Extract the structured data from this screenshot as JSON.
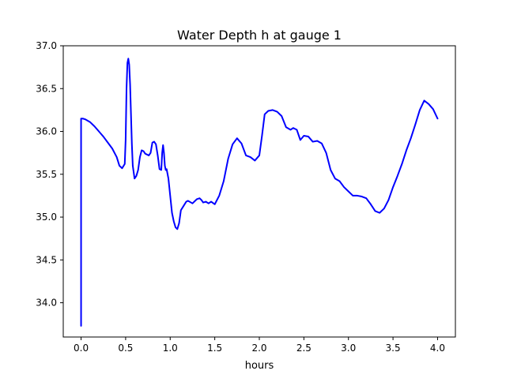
{
  "chart_data": {
    "type": "line",
    "title": "Water Depth h at gauge 1",
    "xlabel": "hours",
    "ylabel": "",
    "xlim": [
      -0.2,
      4.2
    ],
    "ylim": [
      33.6,
      37.0
    ],
    "x_ticks": [
      0.0,
      0.5,
      1.0,
      1.5,
      2.0,
      2.5,
      3.0,
      3.5,
      4.0
    ],
    "x_tick_labels": [
      "0.0",
      "0.5",
      "1.0",
      "1.5",
      "2.0",
      "2.5",
      "3.0",
      "3.5",
      "4.0"
    ],
    "y_ticks": [
      34.0,
      34.5,
      35.0,
      35.5,
      36.0,
      36.5,
      37.0
    ],
    "y_tick_labels": [
      "34.0",
      "34.5",
      "35.0",
      "35.5",
      "36.0",
      "36.5",
      "37.0"
    ],
    "grid": false,
    "legend": "none",
    "series": [
      {
        "color": "#0000ff",
        "x": [
          0.0,
          0.0,
          0.02,
          0.05,
          0.1,
          0.15,
          0.2,
          0.25,
          0.3,
          0.35,
          0.4,
          0.43,
          0.46,
          0.49,
          0.5,
          0.51,
          0.52,
          0.53,
          0.54,
          0.55,
          0.56,
          0.57,
          0.58,
          0.6,
          0.62,
          0.64,
          0.66,
          0.68,
          0.7,
          0.72,
          0.74,
          0.76,
          0.78,
          0.8,
          0.82,
          0.84,
          0.86,
          0.88,
          0.9,
          0.91,
          0.92,
          0.93,
          0.94,
          0.95,
          0.96,
          0.98,
          1.0,
          1.02,
          1.04,
          1.06,
          1.08,
          1.1,
          1.12,
          1.15,
          1.18,
          1.2,
          1.25,
          1.3,
          1.33,
          1.35,
          1.37,
          1.4,
          1.43,
          1.46,
          1.5,
          1.55,
          1.6,
          1.65,
          1.7,
          1.75,
          1.8,
          1.85,
          1.9,
          1.95,
          2.0,
          2.03,
          2.06,
          2.1,
          2.15,
          2.2,
          2.25,
          2.3,
          2.35,
          2.38,
          2.4,
          2.42,
          2.46,
          2.5,
          2.55,
          2.6,
          2.65,
          2.7,
          2.75,
          2.8,
          2.85,
          2.9,
          2.95,
          3.0,
          3.05,
          3.1,
          3.15,
          3.2,
          3.25,
          3.3,
          3.35,
          3.4,
          3.45,
          3.5,
          3.55,
          3.6,
          3.65,
          3.7,
          3.75,
          3.8,
          3.85,
          3.9,
          3.95,
          4.0
        ],
        "y": [
          33.73,
          36.15,
          36.15,
          36.14,
          36.11,
          36.06,
          36.0,
          35.94,
          35.87,
          35.8,
          35.7,
          35.6,
          35.57,
          35.62,
          35.9,
          36.5,
          36.8,
          36.85,
          36.78,
          36.55,
          36.2,
          35.85,
          35.6,
          35.45,
          35.48,
          35.55,
          35.7,
          35.78,
          35.77,
          35.74,
          35.73,
          35.72,
          35.75,
          35.87,
          35.88,
          35.85,
          35.72,
          35.56,
          35.55,
          35.75,
          35.84,
          35.75,
          35.6,
          35.55,
          35.56,
          35.45,
          35.25,
          35.05,
          34.95,
          34.88,
          34.86,
          34.93,
          35.08,
          35.13,
          35.18,
          35.19,
          35.16,
          35.21,
          35.22,
          35.2,
          35.17,
          35.18,
          35.16,
          35.18,
          35.15,
          35.25,
          35.42,
          35.68,
          35.85,
          35.92,
          35.86,
          35.72,
          35.7,
          35.66,
          35.72,
          35.95,
          36.2,
          36.24,
          36.25,
          36.23,
          36.18,
          36.05,
          36.02,
          36.04,
          36.03,
          36.02,
          35.9,
          35.95,
          35.94,
          35.88,
          35.89,
          35.86,
          35.75,
          35.55,
          35.45,
          35.42,
          35.35,
          35.3,
          35.25,
          35.25,
          35.24,
          35.22,
          35.15,
          35.07,
          35.05,
          35.1,
          35.2,
          35.35,
          35.48,
          35.62,
          35.78,
          35.92,
          36.08,
          36.25,
          36.36,
          36.32,
          36.26,
          36.15
        ]
      }
    ]
  }
}
